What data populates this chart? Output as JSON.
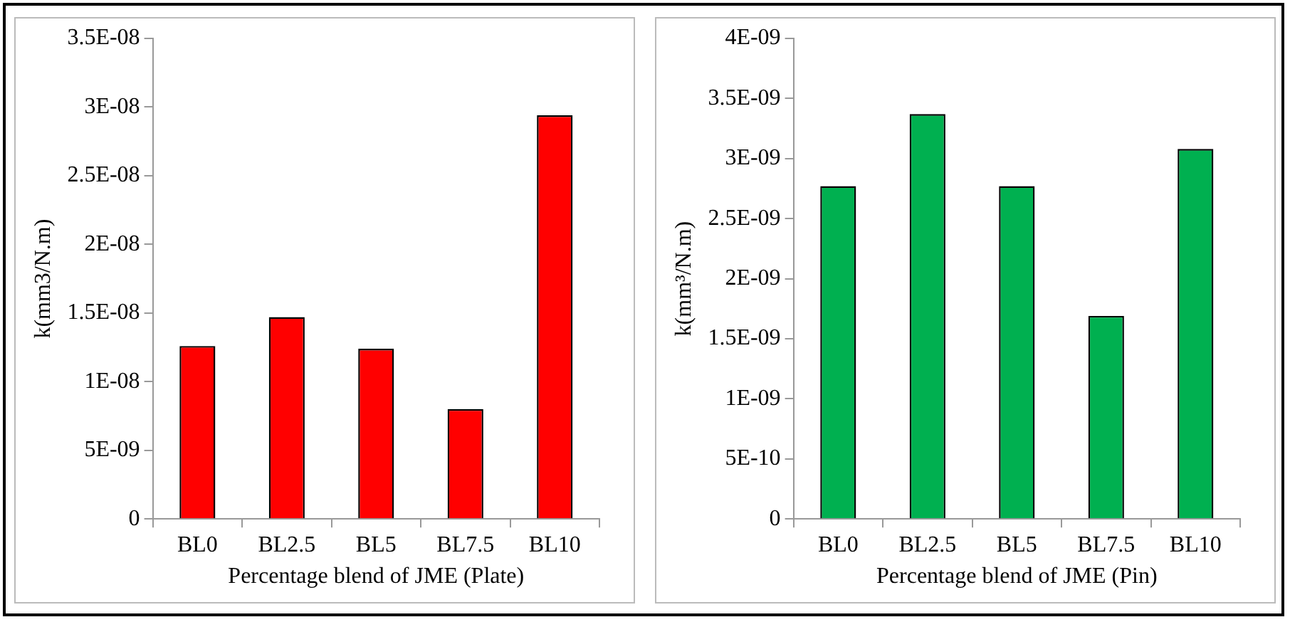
{
  "chart_data": [
    {
      "type": "bar",
      "xlabel": "Percentage blend of JME (Plate)",
      "ylabel": "k(mm3/N.m)",
      "categories": [
        "BL0",
        "BL2.5",
        "BL5",
        "BL7.5",
        "BL10"
      ],
      "values": [
        1.26e-08,
        1.47e-08,
        1.24e-08,
        8e-09,
        2.94e-08
      ],
      "color": "#ff0000",
      "ylim": [
        0,
        3.5e-08
      ],
      "yticks": [
        0,
        {
          "value": 5e-09,
          "label": "5E-09"
        },
        {
          "value": 1e-08,
          "label": "1E-08"
        },
        {
          "value": 1.5e-08,
          "label": "1.5E-08"
        },
        {
          "value": 2e-08,
          "label": "2E-08"
        },
        {
          "value": 2.5e-08,
          "label": "2.5E-08"
        },
        {
          "value": 3e-08,
          "label": "3E-08"
        },
        {
          "value": 3.5e-08,
          "label": "3.5E-08"
        }
      ],
      "grid": false,
      "legend": false
    },
    {
      "type": "bar",
      "xlabel": "Percentage blend of JME (Pin)",
      "ylabel": "k(mm³/N.m)",
      "categories": [
        "BL0",
        "BL2.5",
        "BL5",
        "BL7.5",
        "BL10"
      ],
      "values": [
        2.77e-09,
        3.37e-09,
        2.77e-09,
        1.69e-09,
        3.08e-09
      ],
      "color": "#00b050",
      "ylim": [
        0,
        4e-09
      ],
      "yticks": [
        0,
        {
          "value": 5e-10,
          "label": "5E-10"
        },
        {
          "value": 1e-09,
          "label": "1E-09"
        },
        {
          "value": 1.5e-09,
          "label": "1.5E-09"
        },
        {
          "value": 2e-09,
          "label": "2E-09"
        },
        {
          "value": 2.5e-09,
          "label": "2.5E-09"
        },
        {
          "value": 3e-09,
          "label": "3E-09"
        },
        {
          "value": 3.5e-09,
          "label": "3.5E-09"
        },
        {
          "value": 4e-09,
          "label": "4E-09"
        }
      ],
      "grid": false,
      "legend": false
    }
  ]
}
